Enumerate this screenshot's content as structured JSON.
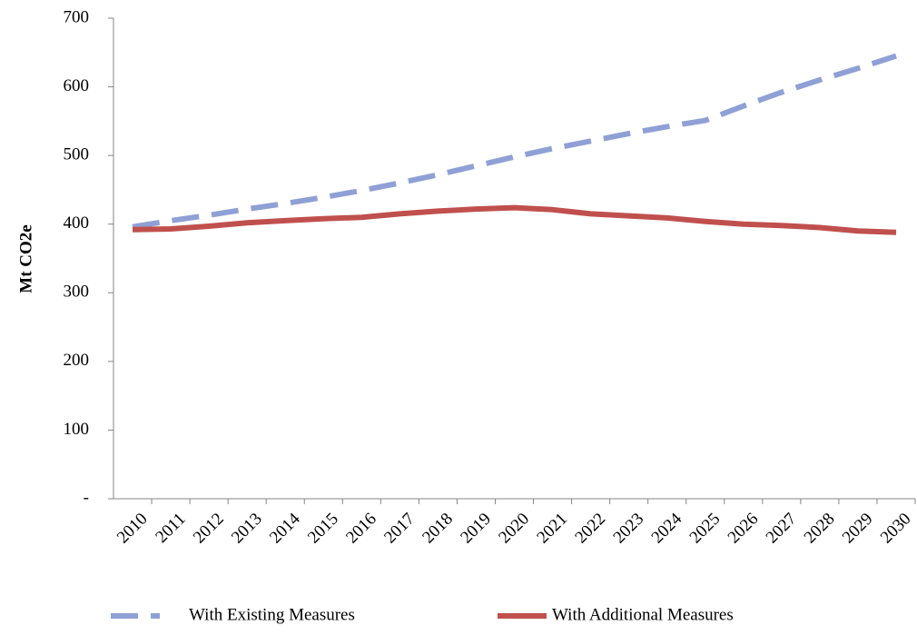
{
  "chart_data": {
    "type": "line",
    "y_label": "Mt CO2e",
    "categories": [
      "2010",
      "2011",
      "2012",
      "2013",
      "2014",
      "2015",
      "2016",
      "2017",
      "2018",
      "2019",
      "2020",
      "2021",
      "2022",
      "2023",
      "2024",
      "2025",
      "2026",
      "2027",
      "2028",
      "2029",
      "2030"
    ],
    "series": [
      {
        "name": "With Existing Measures",
        "color": "#8fa0d6",
        "dashed": true,
        "values": [
          396,
          405,
          413,
          422,
          430,
          439,
          449,
          460,
          472,
          485,
          498,
          510,
          521,
          532,
          542,
          551,
          572,
          592,
          610,
          627,
          645
        ]
      },
      {
        "name": "With Additional Measures",
        "color": "#c0504d",
        "dashed": false,
        "values": [
          392,
          393,
          397,
          402,
          405,
          408,
          410,
          415,
          419,
          422,
          424,
          421,
          415,
          412,
          409,
          404,
          400,
          398,
          395,
          390,
          388
        ]
      }
    ],
    "ylim": [
      0,
      700
    ],
    "yticks": [
      {
        "value": 0,
        "label": "-"
      },
      100,
      200,
      300,
      400,
      500,
      600,
      700
    ],
    "legend": "bottom"
  }
}
